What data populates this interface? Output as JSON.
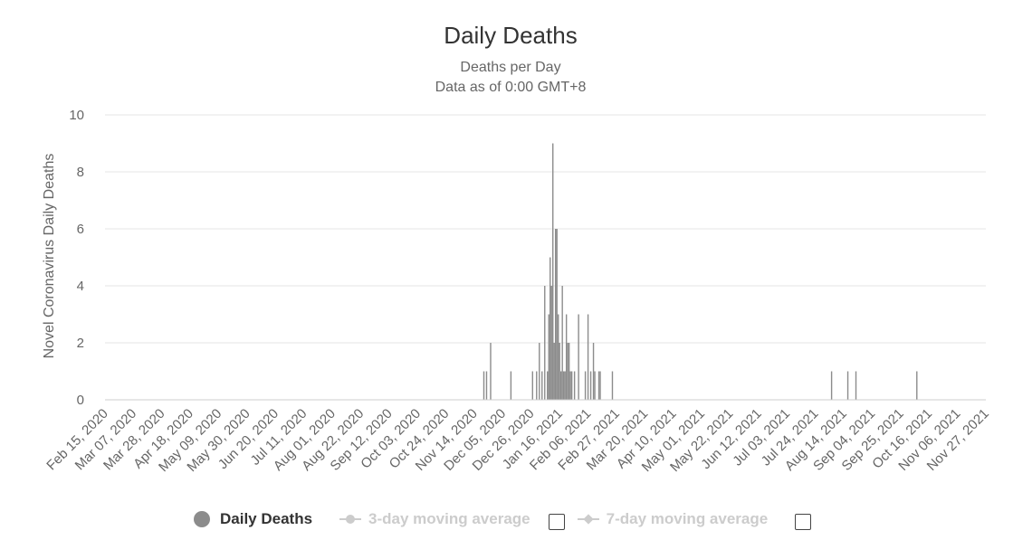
{
  "chart_data": {
    "type": "bar",
    "title": "Daily Deaths",
    "subtitle": [
      "Deaths per Day",
      "Data as of 0:00 GMT+8"
    ],
    "ylabel": "Novel Coronavirus Daily Deaths",
    "xlabel": "",
    "ylim": [
      0,
      10
    ],
    "yticks": [
      0,
      2,
      4,
      6,
      8,
      10
    ],
    "grid": true,
    "x_start": "2020-02-15",
    "x_end": "2021-11-27",
    "xtick_labels": [
      "Feb 15, 2020",
      "Mar 07, 2020",
      "Mar 28, 2020",
      "Apr 18, 2020",
      "May 09, 2020",
      "May 30, 2020",
      "Jun 20, 2020",
      "Jul 11, 2020",
      "Aug 01, 2020",
      "Aug 22, 2020",
      "Sep 12, 2020",
      "Oct 03, 2020",
      "Oct 24, 2020",
      "Nov 14, 2020",
      "Dec 05, 2020",
      "Dec 26, 2020",
      "Jan 16, 2021",
      "Feb 06, 2021",
      "Feb 27, 2021",
      "Mar 20, 2021",
      "Apr 10, 2021",
      "May 01, 2021",
      "May 22, 2021",
      "Jun 12, 2021",
      "Jul 03, 2021",
      "Jul 24, 2021",
      "Aug 14, 2021",
      "Sep 04, 2021",
      "Sep 25, 2021",
      "Oct 16, 2021",
      "Nov 06, 2021",
      "Nov 27, 2021"
    ],
    "series": [
      {
        "name": "Daily Deaths",
        "color": "#8c8c8c",
        "points": [
          {
            "date": "2020-11-21",
            "value": 1
          },
          {
            "date": "2020-11-23",
            "value": 1
          },
          {
            "date": "2020-11-26",
            "value": 2
          },
          {
            "date": "2020-12-11",
            "value": 1
          },
          {
            "date": "2020-12-27",
            "value": 1
          },
          {
            "date": "2020-12-30",
            "value": 1
          },
          {
            "date": "2021-01-01",
            "value": 2
          },
          {
            "date": "2021-01-03",
            "value": 1
          },
          {
            "date": "2021-01-05",
            "value": 4
          },
          {
            "date": "2021-01-07",
            "value": 1
          },
          {
            "date": "2021-01-08",
            "value": 3
          },
          {
            "date": "2021-01-09",
            "value": 5
          },
          {
            "date": "2021-01-10",
            "value": 4
          },
          {
            "date": "2021-01-11",
            "value": 9
          },
          {
            "date": "2021-01-12",
            "value": 2
          },
          {
            "date": "2021-01-13",
            "value": 6
          },
          {
            "date": "2021-01-14",
            "value": 6
          },
          {
            "date": "2021-01-15",
            "value": 3
          },
          {
            "date": "2021-01-16",
            "value": 2
          },
          {
            "date": "2021-01-17",
            "value": 1
          },
          {
            "date": "2021-01-18",
            "value": 4
          },
          {
            "date": "2021-01-19",
            "value": 1
          },
          {
            "date": "2021-01-20",
            "value": 1
          },
          {
            "date": "2021-01-21",
            "value": 3
          },
          {
            "date": "2021-01-22",
            "value": 2
          },
          {
            "date": "2021-01-23",
            "value": 2
          },
          {
            "date": "2021-01-24",
            "value": 1
          },
          {
            "date": "2021-01-25",
            "value": 1
          },
          {
            "date": "2021-01-27",
            "value": 1
          },
          {
            "date": "2021-01-30",
            "value": 3
          },
          {
            "date": "2021-02-04",
            "value": 1
          },
          {
            "date": "2021-02-06",
            "value": 3
          },
          {
            "date": "2021-02-08",
            "value": 1
          },
          {
            "date": "2021-02-10",
            "value": 2
          },
          {
            "date": "2021-02-11",
            "value": 1
          },
          {
            "date": "2021-02-14",
            "value": 1
          },
          {
            "date": "2021-02-15",
            "value": 1
          },
          {
            "date": "2021-02-24",
            "value": 1
          },
          {
            "date": "2021-08-05",
            "value": 1
          },
          {
            "date": "2021-08-17",
            "value": 1
          },
          {
            "date": "2021-08-23",
            "value": 1
          },
          {
            "date": "2021-10-07",
            "value": 1
          }
        ]
      },
      {
        "name": "3-day moving average",
        "visible": false
      },
      {
        "name": "7-day moving average",
        "visible": false
      }
    ]
  },
  "legend": {
    "daily_deaths": "Daily Deaths",
    "ma3": "3-day moving average",
    "ma7": "7-day moving average"
  },
  "colors": {
    "bar": "#8c8c8c",
    "grid": "#e6e6e6",
    "axis": "#cccccc",
    "legend_hidden": "#cccccc",
    "text": "#333333",
    "tick_text": "#666666"
  }
}
